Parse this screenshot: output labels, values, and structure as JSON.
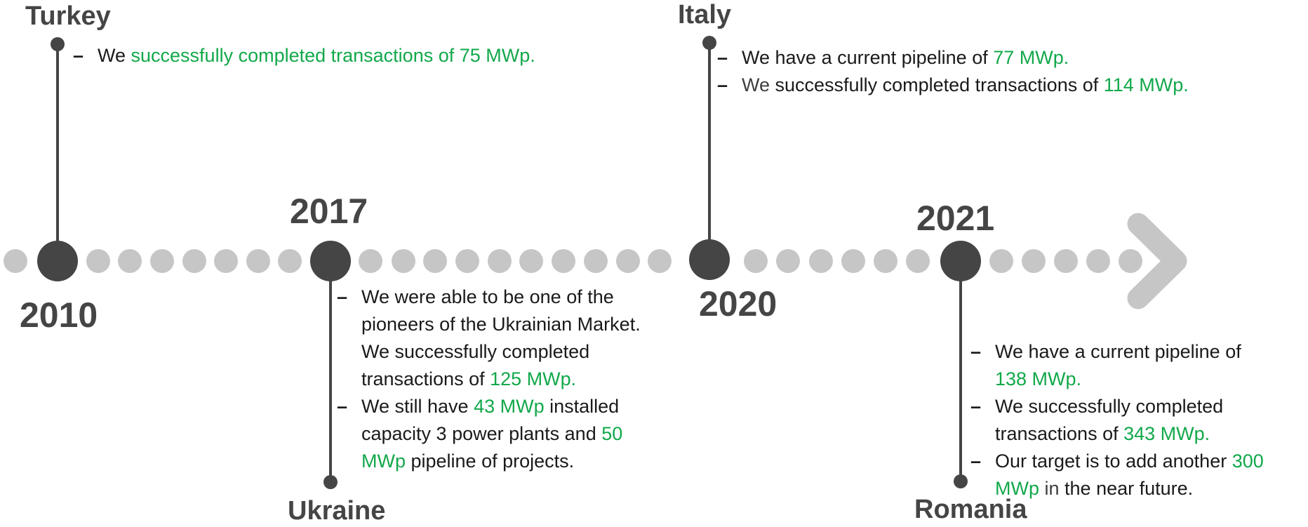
{
  "colors": {
    "accent_green": "#12a84a",
    "dark_node": "#454545",
    "dot": "#c6c6c6",
    "text": "#1a1a1a"
  },
  "milestones": {
    "turkey": {
      "year": "2010",
      "country": "Turkey",
      "b1": {
        "a": "We ",
        "b": "successfully completed transactions of 75 MWp."
      }
    },
    "ukraine": {
      "year": "2017",
      "country": "Ukraine",
      "b1": {
        "a": "We were able to be one of the pioneers of the Ukrainian Market. We successfully completed transactions of ",
        "b": "125 MWp."
      },
      "b2": {
        "a": "We still have ",
        "b": "43 MWp",
        "c": " installed capacity  3 power plants and ",
        "d": "50 MWp",
        "e": " pipeline of projects."
      }
    },
    "italy": {
      "year": "2020",
      "country": "Italy",
      "b1": {
        "a": "We have a current pipeline of ",
        "b": "77 MWp."
      },
      "b2": {
        "a": "We",
        "b": " successfully completed transactions of ",
        "c": "114 MWp."
      }
    },
    "romania": {
      "year": "2021",
      "country": "Romania",
      "b1": {
        "a": "We have a current pipeline of ",
        "b": "138 MWp."
      },
      "b2": {
        "a": "We successfully completed transactions of ",
        "b": "343 MWp."
      },
      "b3": {
        "a": "Our target is to add another ",
        "b": "300 MWp",
        "c": " in",
        "d": " the near future."
      }
    }
  }
}
